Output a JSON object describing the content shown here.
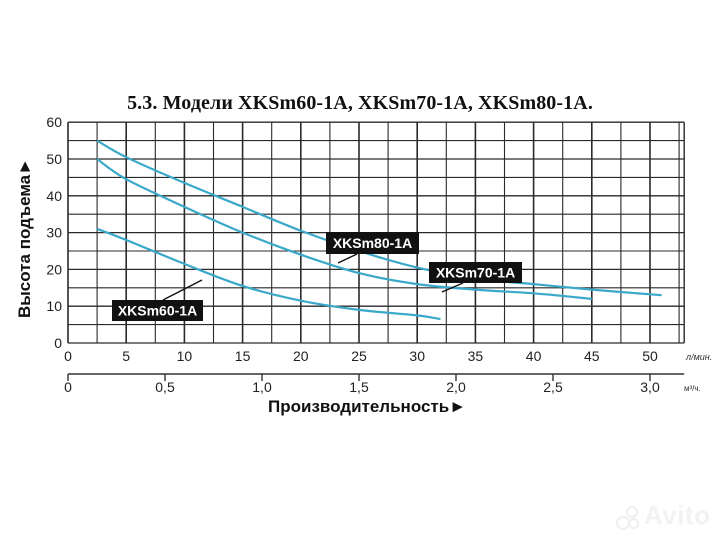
{
  "header": {
    "title": "5.3. Модели XKSm60-1A, XKSm70-1A, XKSm80-1A."
  },
  "axes": {
    "y_label": "Высота подъема►",
    "x_label": "Производительность►",
    "x_unit_primary": "л/мин.",
    "x_unit_secondary": "м³/ч."
  },
  "labels": {
    "xksm80": "XKSm80-1A",
    "xksm70": "XKSm70-1A",
    "xksm60": "XKSm60-1A"
  },
  "watermark": {
    "text": "Avito"
  },
  "colors": {
    "curve": "#3aa9c9",
    "grid": "#2a2a2a",
    "label_bg": "#111111",
    "label_text": "#ffffff"
  },
  "chart_data": {
    "type": "line",
    "title": "5.3. Модели XKSm60-1A, XKSm70-1A, XKSm80-1A.",
    "xlabel": "Производительность (л/мин.)",
    "ylabel": "Высота подъема (м)",
    "xlim": [
      0,
      55
    ],
    "ylim": [
      0,
      60
    ],
    "x_ticks": [
      0,
      5,
      10,
      15,
      20,
      25,
      30,
      35,
      40,
      45,
      50
    ],
    "y_ticks": [
      0,
      10,
      20,
      30,
      40,
      50,
      60
    ],
    "secondary_x_axis": {
      "unit": "м³/ч.",
      "ticks": [
        "0",
        "0,5",
        "1,0",
        "1,5",
        "2,0",
        "2,5",
        "3,0"
      ],
      "values": [
        0,
        0.5,
        1.0,
        1.5,
        2.0,
        2.5,
        3.0
      ]
    },
    "grid": true,
    "legend_position": "inline-labels",
    "series": [
      {
        "name": "XKSm80-1A",
        "x": [
          2.5,
          5,
          10,
          15,
          20,
          25,
          30,
          35,
          40,
          45,
          51
        ],
        "values": [
          55,
          50.5,
          43.5,
          37,
          30.5,
          25,
          20.5,
          17.5,
          16,
          14.5,
          13
        ]
      },
      {
        "name": "XKSm70-1A",
        "x": [
          2.5,
          5,
          10,
          15,
          20,
          25,
          30,
          35,
          40,
          45
        ],
        "values": [
          50,
          44.5,
          37,
          30,
          24,
          19,
          16,
          14.5,
          13.5,
          12
        ]
      },
      {
        "name": "XKSm60-1A",
        "x": [
          2.5,
          5,
          10,
          15,
          20,
          25,
          30,
          32
        ],
        "values": [
          31,
          28,
          21.5,
          15.5,
          11.5,
          9,
          7.5,
          6.5
        ]
      }
    ]
  }
}
